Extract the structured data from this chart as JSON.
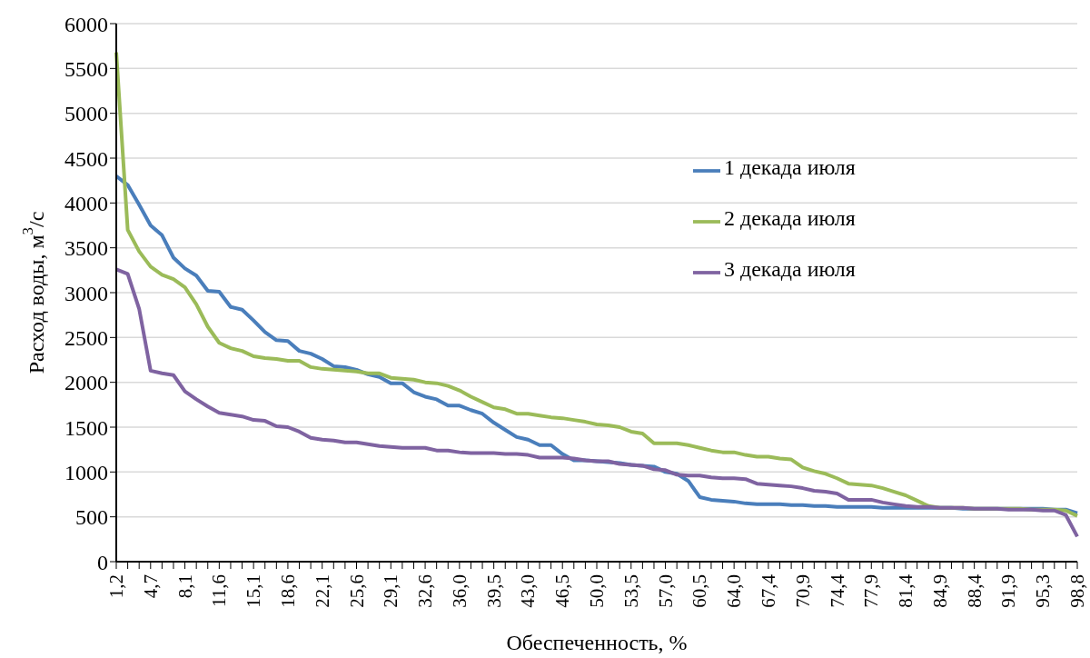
{
  "chart_data": {
    "type": "line",
    "xlabel": "Обеспеченность, %",
    "ylabel": "Расход воды, м$^{3}$/с",
    "categories": [
      "1,2",
      null,
      null,
      "4,7",
      null,
      null,
      "8,1",
      null,
      null,
      "11,6",
      null,
      null,
      "15,1",
      null,
      null,
      "18,6",
      null,
      null,
      "22,1",
      null,
      null,
      "25,6",
      null,
      null,
      "29,1",
      null,
      null,
      "32,6",
      null,
      null,
      "36,0",
      null,
      null,
      "39,5",
      null,
      null,
      "43,0",
      null,
      null,
      "46,5",
      null,
      null,
      "50,0",
      null,
      null,
      "53,5",
      null,
      null,
      "57,0",
      null,
      null,
      "60,5",
      null,
      null,
      "64,0",
      null,
      null,
      "67,4",
      null,
      null,
      "70,9",
      null,
      null,
      "74,4",
      null,
      null,
      "77,9",
      null,
      null,
      "81,4",
      null,
      null,
      "84,9",
      null,
      null,
      "88,4",
      null,
      null,
      "91,9",
      null,
      null,
      "95,3",
      null,
      null,
      "98,8"
    ],
    "series": [
      {
        "name": "1 декада июля",
        "color": "#4a7ebb",
        "values": [
          4300,
          4200,
          3980,
          3750,
          3640,
          3390,
          3270,
          3190,
          3020,
          3010,
          2840,
          2810,
          2690,
          2560,
          2470,
          2460,
          2350,
          2320,
          2260,
          2180,
          2170,
          2140,
          2090,
          2060,
          1990,
          1990,
          1890,
          1840,
          1810,
          1740,
          1740,
          1690,
          1650,
          1550,
          1470,
          1390,
          1360,
          1300,
          1300,
          1200,
          1130,
          1130,
          1120,
          1110,
          1100,
          1080,
          1070,
          1060,
          1000,
          980,
          900,
          720,
          690,
          680,
          670,
          650,
          640,
          640,
          640,
          630,
          630,
          620,
          620,
          610,
          610,
          610,
          610,
          600,
          600,
          600,
          600,
          600,
          600,
          600,
          590,
          590,
          590,
          590,
          590,
          590,
          590,
          590,
          580,
          580,
          540
        ]
      },
      {
        "name": "2 декада июля",
        "color": "#9bbb59",
        "values": [
          5680,
          3700,
          3460,
          3290,
          3200,
          3150,
          3060,
          2870,
          2620,
          2440,
          2380,
          2350,
          2290,
          2270,
          2260,
          2240,
          2240,
          2170,
          2150,
          2140,
          2130,
          2120,
          2100,
          2100,
          2050,
          2040,
          2030,
          2000,
          1990,
          1960,
          1910,
          1840,
          1780,
          1720,
          1700,
          1650,
          1650,
          1630,
          1610,
          1600,
          1580,
          1560,
          1530,
          1520,
          1500,
          1450,
          1430,
          1320,
          1320,
          1320,
          1300,
          1270,
          1240,
          1220,
          1220,
          1190,
          1170,
          1170,
          1150,
          1140,
          1050,
          1010,
          980,
          930,
          870,
          860,
          850,
          820,
          780,
          740,
          680,
          620,
          600,
          600,
          600,
          590,
          590,
          590,
          590,
          590,
          580,
          580,
          580,
          570,
          510
        ]
      },
      {
        "name": "3 декада июля",
        "color": "#7f63a1",
        "values": [
          3260,
          3210,
          2820,
          2130,
          2100,
          2080,
          1900,
          1810,
          1730,
          1660,
          1640,
          1620,
          1580,
          1570,
          1510,
          1500,
          1450,
          1380,
          1360,
          1350,
          1330,
          1330,
          1310,
          1290,
          1280,
          1270,
          1270,
          1270,
          1240,
          1240,
          1220,
          1210,
          1210,
          1210,
          1200,
          1200,
          1190,
          1160,
          1160,
          1160,
          1150,
          1130,
          1120,
          1120,
          1090,
          1080,
          1070,
          1030,
          1020,
          970,
          960,
          960,
          940,
          930,
          930,
          920,
          870,
          860,
          850,
          840,
          820,
          790,
          780,
          760,
          690,
          690,
          690,
          660,
          640,
          620,
          610,
          610,
          600,
          600,
          600,
          590,
          590,
          590,
          580,
          580,
          580,
          570,
          570,
          520,
          280
        ]
      }
    ],
    "ylim": [
      0,
      6000
    ],
    "yticks": [
      0,
      500,
      1000,
      1500,
      2000,
      2500,
      3000,
      3500,
      4000,
      4500,
      5000,
      5500,
      6000
    ],
    "grid": "y",
    "legend": "right",
    "marker": "none",
    "line_style": "solid"
  }
}
